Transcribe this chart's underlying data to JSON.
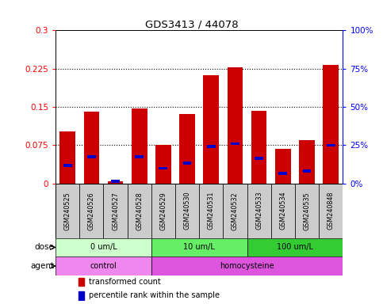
{
  "title": "GDS3413 / 44078",
  "samples": [
    "GSM240525",
    "GSM240526",
    "GSM240527",
    "GSM240528",
    "GSM240529",
    "GSM240530",
    "GSM240531",
    "GSM240532",
    "GSM240533",
    "GSM240534",
    "GSM240535",
    "GSM240848"
  ],
  "red_values": [
    0.102,
    0.141,
    0.004,
    0.147,
    0.075,
    0.137,
    0.213,
    0.228,
    0.143,
    0.068,
    0.085,
    0.232
  ],
  "blue_values": [
    0.035,
    0.052,
    0.004,
    0.052,
    0.03,
    0.04,
    0.072,
    0.078,
    0.05,
    0.02,
    0.025,
    0.075
  ],
  "ylim_left": [
    0,
    0.3
  ],
  "ylim_right": [
    0,
    100
  ],
  "yticks_left": [
    0,
    0.075,
    0.15,
    0.225,
    0.3
  ],
  "yticks_right": [
    0,
    25,
    50,
    75,
    100
  ],
  "ytick_labels_left": [
    "0",
    "0.075",
    "0.15",
    "0.225",
    "0.3"
  ],
  "ytick_labels_right": [
    "0%",
    "25%",
    "50%",
    "75%",
    "100%"
  ],
  "dose_groups": [
    {
      "label": "0 um/L",
      "start": 0,
      "end": 4,
      "color": "#ccffcc"
    },
    {
      "label": "10 um/L",
      "start": 4,
      "end": 8,
      "color": "#66ee66"
    },
    {
      "label": "100 um/L",
      "start": 8,
      "end": 12,
      "color": "#33cc33"
    }
  ],
  "agent_groups": [
    {
      "label": "control",
      "start": 0,
      "end": 4,
      "color": "#ee88ee"
    },
    {
      "label": "homocysteine",
      "start": 4,
      "end": 12,
      "color": "#dd55dd"
    }
  ],
  "bar_color": "#cc0000",
  "marker_color": "#0000cc",
  "sample_bg": "#cccccc",
  "plot_bg": "#ffffff",
  "dose_label": "dose",
  "agent_label": "agent"
}
